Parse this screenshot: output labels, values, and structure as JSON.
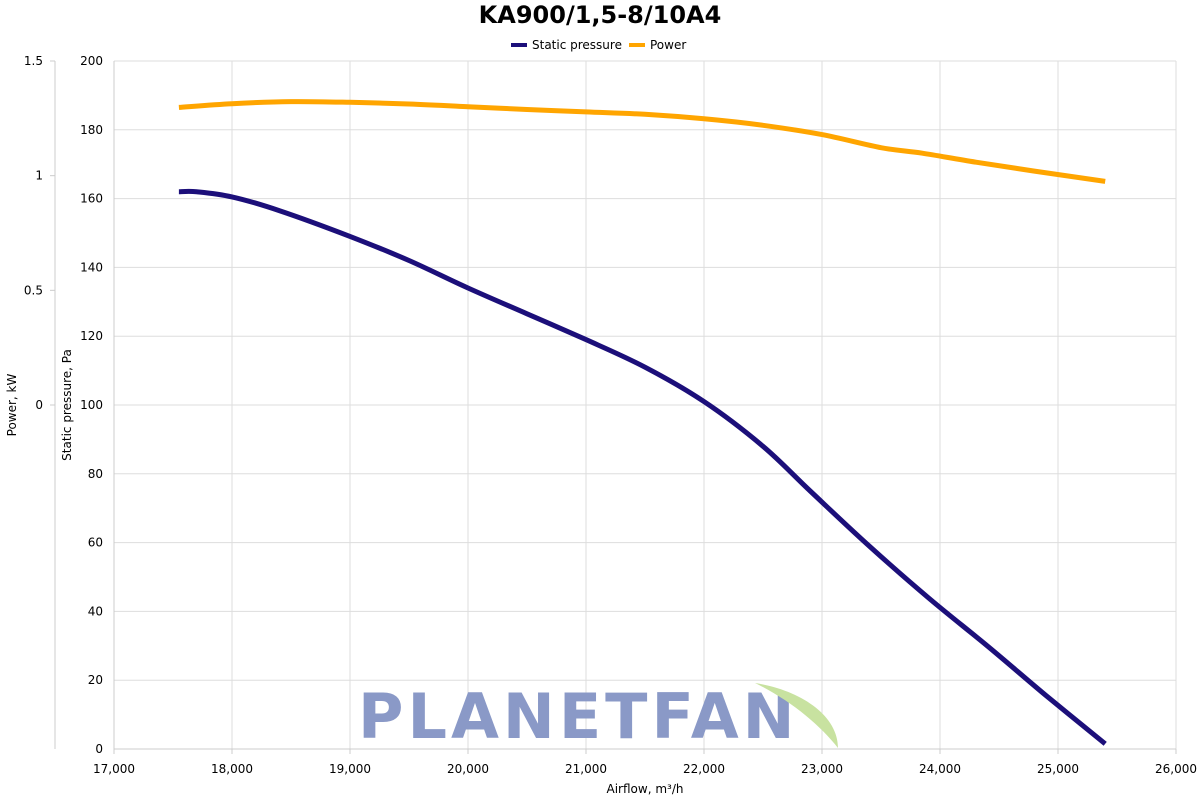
{
  "chart_data": {
    "type": "line",
    "title": "KA900/1,5-8/10A4",
    "xlabel": "Airflow, m³/h",
    "ylabel": "Static pressure, Pa",
    "y2label": "Power, kW",
    "xlim": [
      17000,
      26000
    ],
    "ylim": [
      0,
      200
    ],
    "y2lim": [
      -1.5,
      1.5
    ],
    "x_ticks": [
      "17,000",
      "18,000",
      "19,000",
      "20,000",
      "21,000",
      "22,000",
      "23,000",
      "24,000",
      "25,000",
      "26,000"
    ],
    "y_ticks": [
      "0",
      "20",
      "40",
      "60",
      "80",
      "100",
      "120",
      "140",
      "160",
      "180",
      "200"
    ],
    "y2_ticks": [
      "0",
      "0.5",
      "1",
      "1.5"
    ],
    "grid": true,
    "legend_position": "top-center",
    "watermark": "PLANETFAN",
    "series": [
      {
        "name": "Static pressure",
        "color": "#1c0f7a",
        "axis": "left",
        "x": [
          17550,
          17700,
          18000,
          18400,
          19000,
          19500,
          20000,
          20500,
          21000,
          21500,
          22000,
          22500,
          22900,
          23400,
          23900,
          24400,
          24900,
          25400
        ],
        "y": [
          162,
          162,
          160.5,
          156.5,
          149,
          142,
          134,
          126.5,
          119,
          111,
          101,
          88,
          75,
          59,
          44,
          30,
          15.5,
          1.5
        ]
      },
      {
        "name": "Power",
        "color": "#ffa500",
        "axis": "left",
        "x": [
          17550,
          18000,
          18500,
          19000,
          19500,
          20000,
          20500,
          21000,
          21500,
          22000,
          22500,
          23000,
          23500,
          23850,
          24300,
          24800,
          25400
        ],
        "y": [
          186.5,
          187.6,
          188.2,
          188.0,
          187.5,
          186.7,
          185.9,
          185.2,
          184.5,
          183.2,
          181.3,
          178.6,
          174.8,
          173.2,
          170.6,
          168.0,
          165.0
        ]
      }
    ]
  }
}
